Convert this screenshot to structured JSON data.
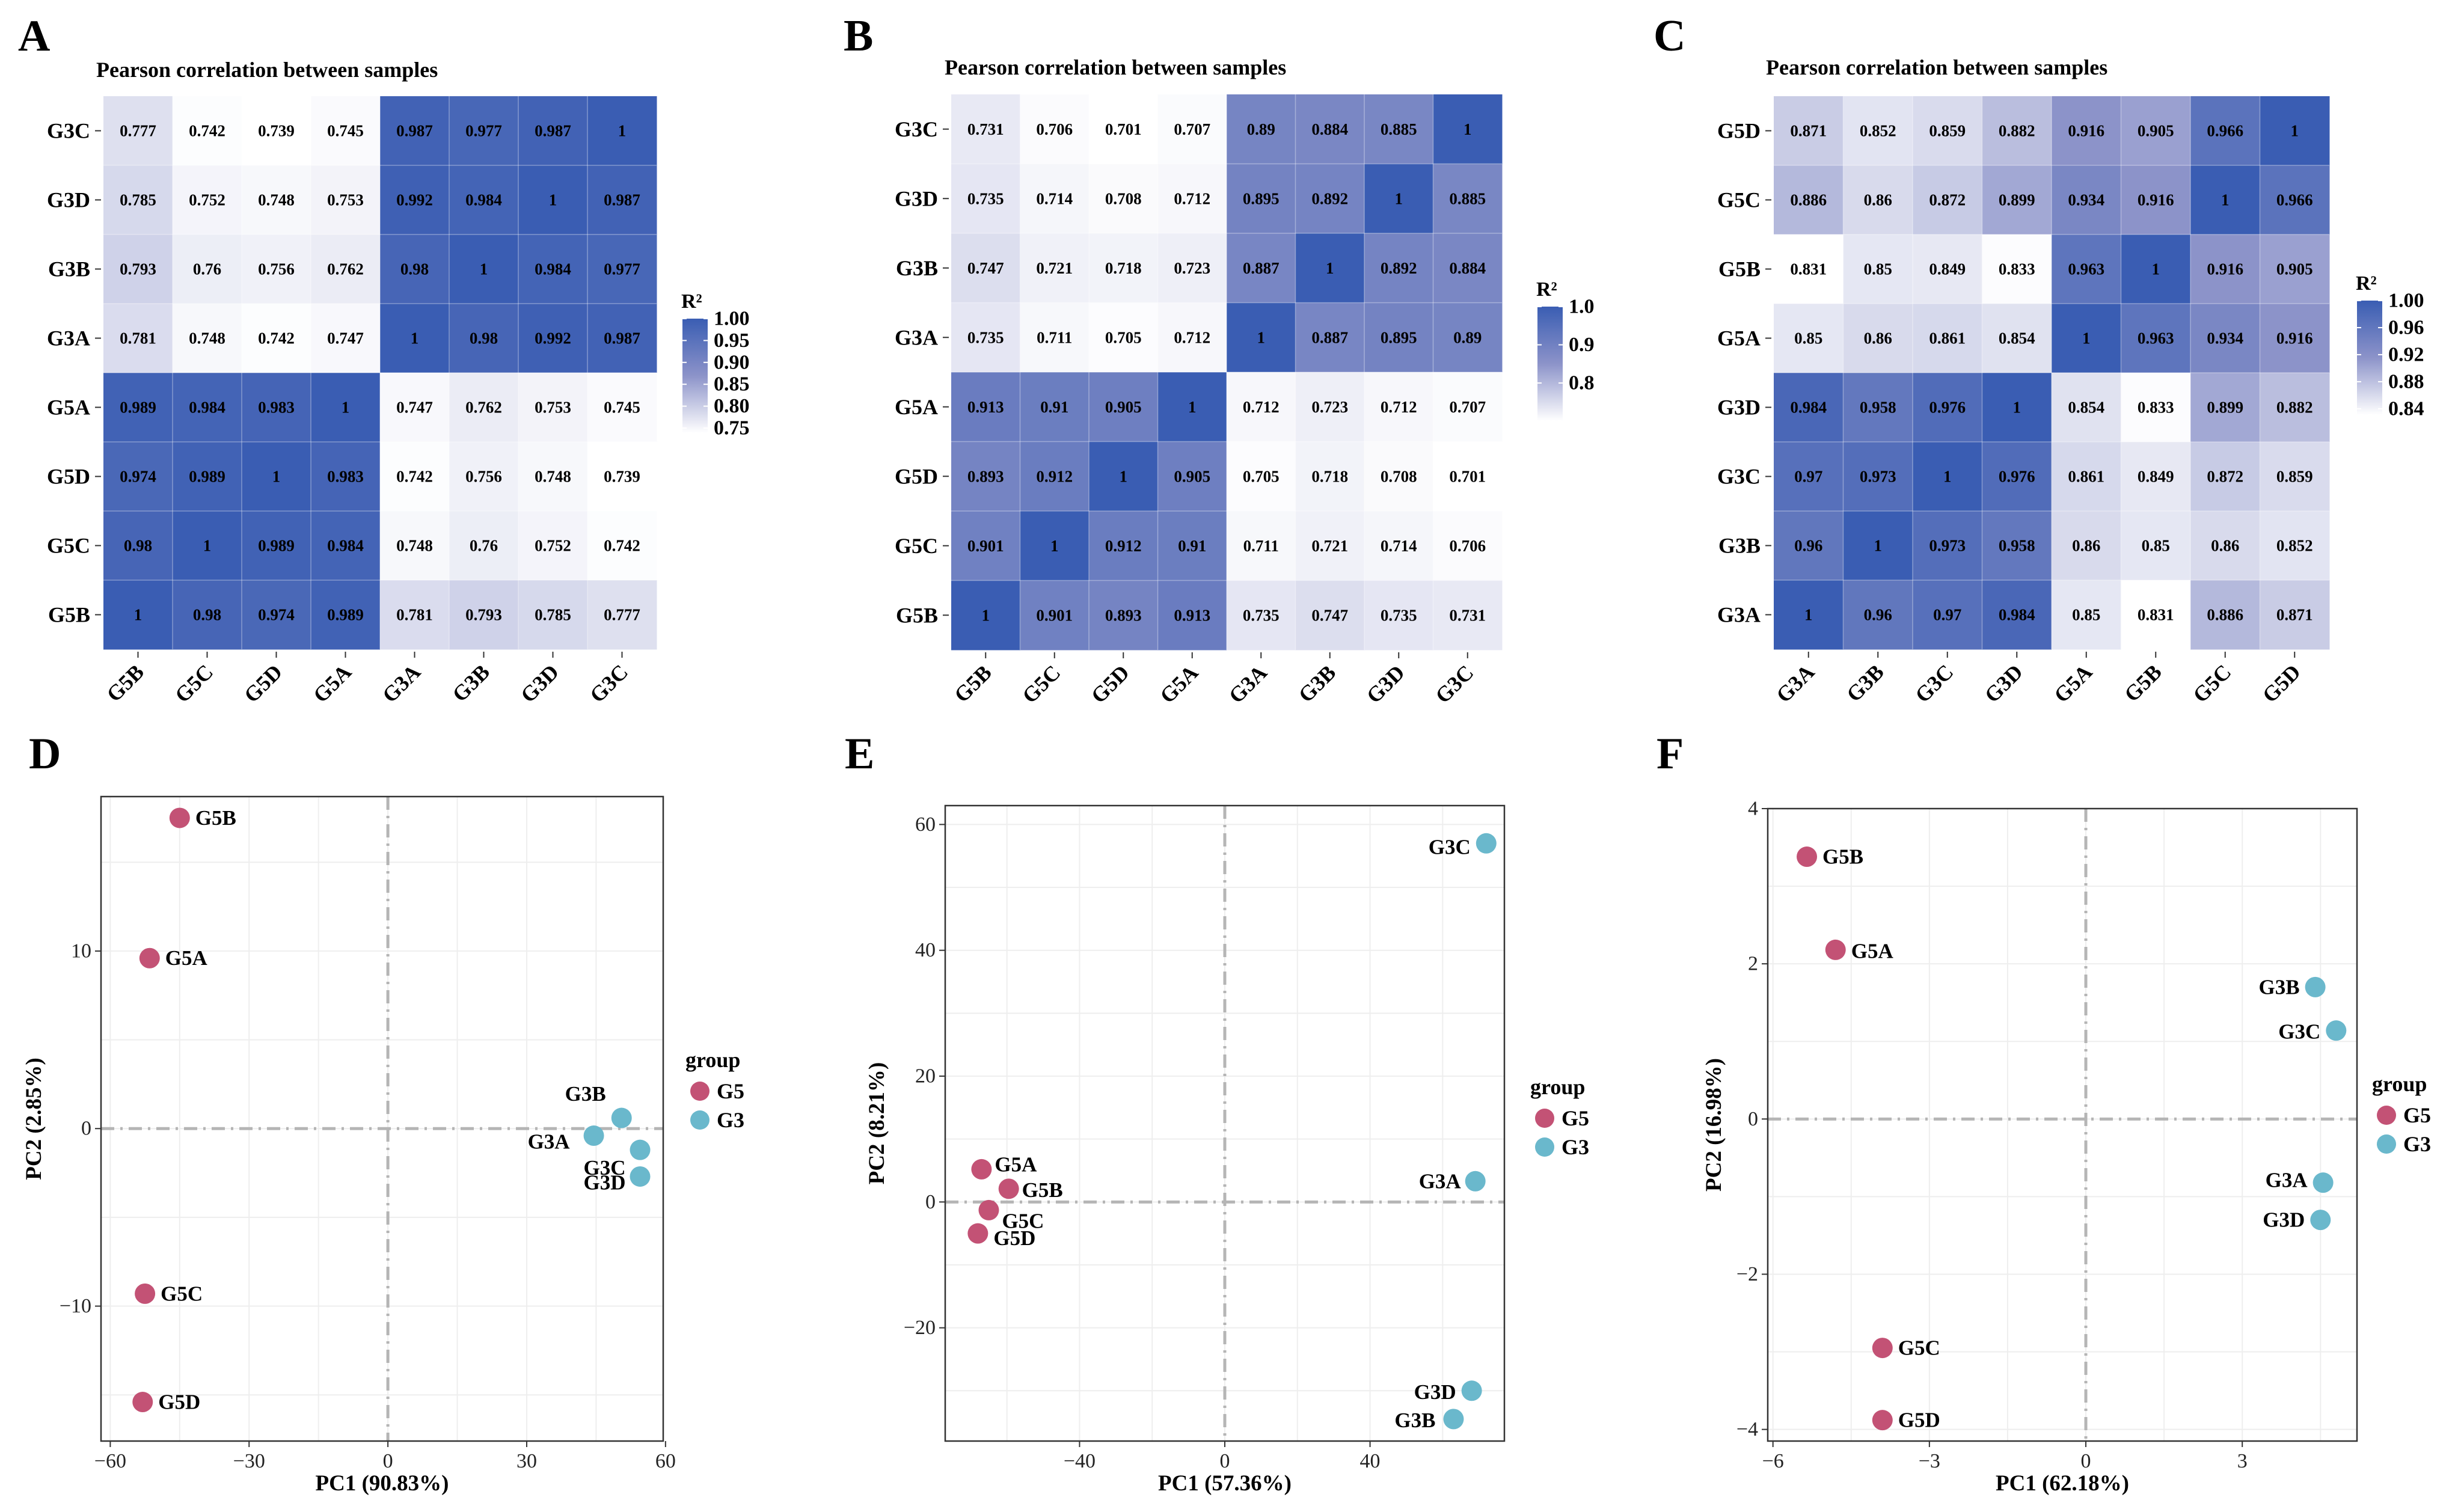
{
  "colors": {
    "low": "#ffffff",
    "mid": "#8c93c9",
    "high": "#3a5db3",
    "g5": "#c35275",
    "g3": "#6ab8cc",
    "grid": "#eeeeee",
    "zero": "#b5b5b5"
  },
  "heatmaps": [
    {
      "letter": "A",
      "title": "Pearson correlation between samples",
      "rows": [
        "G3C",
        "G3D",
        "G3B",
        "G3A",
        "G5A",
        "G5D",
        "G5C",
        "G5B"
      ],
      "cols": [
        "G5B",
        "G5C",
        "G5D",
        "G5A",
        "G3A",
        "G3B",
        "G3D",
        "G3C"
      ],
      "values": [
        [
          "0.777",
          "0.742",
          "0.739",
          "0.745",
          "0.987",
          "0.977",
          "0.987",
          "1"
        ],
        [
          "0.785",
          "0.752",
          "0.748",
          "0.753",
          "0.992",
          "0.984",
          "1",
          "0.987"
        ],
        [
          "0.793",
          "0.76",
          "0.756",
          "0.762",
          "0.98",
          "1",
          "0.984",
          "0.977"
        ],
        [
          "0.781",
          "0.748",
          "0.742",
          "0.747",
          "1",
          "0.98",
          "0.992",
          "0.987"
        ],
        [
          "0.989",
          "0.984",
          "0.983",
          "1",
          "0.747",
          "0.762",
          "0.753",
          "0.745"
        ],
        [
          "0.974",
          "0.989",
          "1",
          "0.983",
          "0.742",
          "0.756",
          "0.748",
          "0.739"
        ],
        [
          "0.98",
          "1",
          "0.989",
          "0.984",
          "0.748",
          "0.76",
          "0.752",
          "0.742"
        ],
        [
          "1",
          "0.98",
          "0.974",
          "0.989",
          "0.781",
          "0.793",
          "0.785",
          "0.777"
        ]
      ],
      "scale_min": 0.739,
      "scale_max": 1.0,
      "legend_title": "R²",
      "legend_ticks": [
        "1.00",
        "0.95",
        "0.90",
        "0.85",
        "0.80",
        "0.75"
      ],
      "legend_tick_values": [
        1.0,
        0.95,
        0.9,
        0.85,
        0.8,
        0.75
      ]
    },
    {
      "letter": "B",
      "title": "Pearson correlation between samples",
      "rows": [
        "G3C",
        "G3D",
        "G3B",
        "G3A",
        "G5A",
        "G5D",
        "G5C",
        "G5B"
      ],
      "cols": [
        "G5B",
        "G5C",
        "G5D",
        "G5A",
        "G3A",
        "G3B",
        "G3D",
        "G3C"
      ],
      "values": [
        [
          "0.731",
          "0.706",
          "0.701",
          "0.707",
          "0.89",
          "0.884",
          "0.885",
          "1"
        ],
        [
          "0.735",
          "0.714",
          "0.708",
          "0.712",
          "0.895",
          "0.892",
          "1",
          "0.885"
        ],
        [
          "0.747",
          "0.721",
          "0.718",
          "0.723",
          "0.887",
          "1",
          "0.892",
          "0.884"
        ],
        [
          "0.735",
          "0.711",
          "0.705",
          "0.712",
          "1",
          "0.887",
          "0.895",
          "0.89"
        ],
        [
          "0.913",
          "0.91",
          "0.905",
          "1",
          "0.712",
          "0.723",
          "0.712",
          "0.707"
        ],
        [
          "0.893",
          "0.912",
          "1",
          "0.905",
          "0.705",
          "0.718",
          "0.708",
          "0.701"
        ],
        [
          "0.901",
          "1",
          "0.912",
          "0.91",
          "0.711",
          "0.721",
          "0.714",
          "0.706"
        ],
        [
          "1",
          "0.901",
          "0.893",
          "0.913",
          "0.735",
          "0.747",
          "0.735",
          "0.731"
        ]
      ],
      "scale_min": 0.701,
      "scale_max": 1.0,
      "legend_title": "R²",
      "legend_ticks": [
        "1.0",
        "0.9",
        "0.8"
      ],
      "legend_tick_values": [
        1.0,
        0.9,
        0.8
      ]
    },
    {
      "letter": "C",
      "title": "Pearson correlation between samples",
      "rows": [
        "G5D",
        "G5C",
        "G5B",
        "G5A",
        "G3D",
        "G3C",
        "G3B",
        "G3A"
      ],
      "cols": [
        "G3A",
        "G3B",
        "G3C",
        "G3D",
        "G5A",
        "G5B",
        "G5C",
        "G5D"
      ],
      "values": [
        [
          "0.871",
          "0.852",
          "0.859",
          "0.882",
          "0.916",
          "0.905",
          "0.966",
          "1"
        ],
        [
          "0.886",
          "0.86",
          "0.872",
          "0.899",
          "0.934",
          "0.916",
          "1",
          "0.966"
        ],
        [
          "0.831",
          "0.85",
          "0.849",
          "0.833",
          "0.963",
          "1",
          "0.916",
          "0.905"
        ],
        [
          "0.85",
          "0.86",
          "0.861",
          "0.854",
          "1",
          "0.963",
          "0.934",
          "0.916"
        ],
        [
          "0.984",
          "0.958",
          "0.976",
          "1",
          "0.854",
          "0.833",
          "0.899",
          "0.882"
        ],
        [
          "0.97",
          "0.973",
          "1",
          "0.976",
          "0.861",
          "0.849",
          "0.872",
          "0.859"
        ],
        [
          "0.96",
          "1",
          "0.973",
          "0.958",
          "0.86",
          "0.85",
          "0.86",
          "0.852"
        ],
        [
          "1",
          "0.96",
          "0.97",
          "0.984",
          "0.85",
          "0.831",
          "0.886",
          "0.871"
        ]
      ],
      "scale_min": 0.831,
      "scale_max": 1.0,
      "legend_title": "R²",
      "legend_ticks": [
        "1.00",
        "0.96",
        "0.92",
        "0.88",
        "0.84"
      ],
      "legend_tick_values": [
        1.0,
        0.96,
        0.92,
        0.88,
        0.84
      ]
    }
  ],
  "chart_data": [
    {
      "type": "heatmap",
      "panel": "A",
      "title": "Pearson correlation between samples",
      "rows": [
        "G3C",
        "G3D",
        "G3B",
        "G3A",
        "G5A",
        "G5D",
        "G5C",
        "G5B"
      ],
      "cols": [
        "G5B",
        "G5C",
        "G5D",
        "G5A",
        "G3A",
        "G3B",
        "G3D",
        "G3C"
      ],
      "legend": "R²",
      "range": [
        0.739,
        1.0
      ]
    },
    {
      "type": "heatmap",
      "panel": "B",
      "title": "Pearson correlation between samples",
      "rows": [
        "G3C",
        "G3D",
        "G3B",
        "G3A",
        "G5A",
        "G5D",
        "G5C",
        "G5B"
      ],
      "cols": [
        "G5B",
        "G5C",
        "G5D",
        "G5A",
        "G3A",
        "G3B",
        "G3D",
        "G3C"
      ],
      "legend": "R²",
      "range": [
        0.701,
        1.0
      ]
    },
    {
      "type": "heatmap",
      "panel": "C",
      "title": "Pearson correlation between samples",
      "rows": [
        "G5D",
        "G5C",
        "G5B",
        "G5A",
        "G3D",
        "G3C",
        "G3B",
        "G3A"
      ],
      "cols": [
        "G3A",
        "G3B",
        "G3C",
        "G3D",
        "G5A",
        "G5B",
        "G5C",
        "G5D"
      ],
      "legend": "R²",
      "range": [
        0.831,
        1.0
      ]
    },
    {
      "type": "scatter",
      "panel": "D",
      "xlabel": "PC1 (90.83%)",
      "ylabel": "PC2 (2.85%)",
      "xlim": [
        -62,
        59.5
      ],
      "ylim": [
        -17.6,
        18.7
      ],
      "xticks": [
        -60,
        -30,
        0,
        30,
        60
      ],
      "yticks": [
        -10,
        0,
        10
      ],
      "xtick_labels": [
        "−60",
        "−30",
        "0",
        "30",
        "60"
      ],
      "ytick_labels": [
        "−10",
        "0",
        "10"
      ],
      "legend_title": "group",
      "series": [
        {
          "name": "G5",
          "points": [
            {
              "label": "G5B",
              "x": -45,
              "y": 17.5
            },
            {
              "label": "G5A",
              "x": -51.5,
              "y": 9.6
            },
            {
              "label": "G5C",
              "x": -52.5,
              "y": -9.3
            },
            {
              "label": "G5D",
              "x": -53,
              "y": -15.4
            }
          ]
        },
        {
          "name": "G3",
          "points": [
            {
              "label": "G3B",
              "x": 50.5,
              "y": 0.6
            },
            {
              "label": "G3A",
              "x": 44.5,
              "y": -0.4
            },
            {
              "label": "G3C",
              "x": 54.5,
              "y": -1.2
            },
            {
              "label": "G3D",
              "x": 54.5,
              "y": -2.7
            }
          ]
        }
      ]
    },
    {
      "type": "scatter",
      "panel": "E",
      "xlabel": "PC1 (57.36%)",
      "ylabel": "PC2 (8.21%)",
      "xlim": [
        -77,
        77
      ],
      "ylim": [
        -38,
        63
      ],
      "xticks": [
        -40,
        0,
        40
      ],
      "yticks": [
        -20,
        0,
        20,
        40,
        60
      ],
      "xtick_labels": [
        "−40",
        "0",
        "40"
      ],
      "ytick_labels": [
        "−20",
        "0",
        "20",
        "40",
        "60"
      ],
      "legend_title": "group",
      "series": [
        {
          "name": "G5",
          "points": [
            {
              "label": "G5A",
              "x": -67,
              "y": 5.2
            },
            {
              "label": "G5B",
              "x": -59.5,
              "y": 2.1
            },
            {
              "label": "G5C",
              "x": -65,
              "y": -1.3
            },
            {
              "label": "G5D",
              "x": -68,
              "y": -5
            }
          ]
        },
        {
          "name": "G3",
          "points": [
            {
              "label": "G3C",
              "x": 72,
              "y": 57
            },
            {
              "label": "G3A",
              "x": 69,
              "y": 3.3
            },
            {
              "label": "G3D",
              "x": 68,
              "y": -30
            },
            {
              "label": "G3B",
              "x": 63,
              "y": -34.5
            }
          ]
        }
      ]
    },
    {
      "type": "scatter",
      "panel": "F",
      "xlabel": "PC1 (62.18%)",
      "ylabel": "PC2 (16.98%)",
      "xlim": [
        -6.1,
        5.2
      ],
      "ylim": [
        -4.15,
        4.0
      ],
      "xticks": [
        -6,
        -3,
        0,
        3
      ],
      "yticks": [
        -4,
        -2,
        0,
        2,
        4
      ],
      "xtick_labels": [
        "−6",
        "−3",
        "0",
        "3"
      ],
      "ytick_labels": [
        "−4",
        "−2",
        "0",
        "2",
        "4"
      ],
      "legend_title": "group",
      "series": [
        {
          "name": "G5",
          "points": [
            {
              "label": "G5B",
              "x": -5.35,
              "y": 3.38
            },
            {
              "label": "G5A",
              "x": -4.8,
              "y": 2.18
            },
            {
              "label": "G5C",
              "x": -3.9,
              "y": -2.95
            },
            {
              "label": "G5D",
              "x": -3.9,
              "y": -3.88
            }
          ]
        },
        {
          "name": "G3",
          "points": [
            {
              "label": "G3B",
              "x": 4.4,
              "y": 1.7
            },
            {
              "label": "G3C",
              "x": 4.8,
              "y": 1.14
            },
            {
              "label": "G3A",
              "x": 4.55,
              "y": -0.82
            },
            {
              "label": "G3D",
              "x": 4.5,
              "y": -1.3
            }
          ]
        }
      ]
    }
  ]
}
